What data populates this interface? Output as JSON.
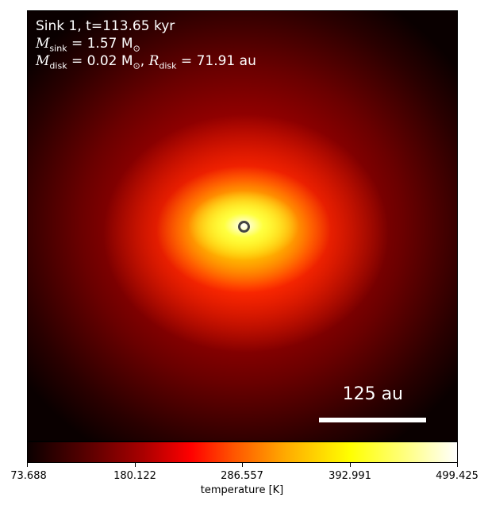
{
  "info": {
    "line1": "Sink 1, t=113.65 kyr",
    "msink_symbol": "M",
    "msink_sub": "sink",
    "msink_value": " = 1.57 M",
    "msink_sun": "⊙",
    "mdisk_symbol": "M",
    "mdisk_sub": "disk",
    "mdisk_value": " = 0.02 M",
    "mdisk_sun": "⊙",
    "rdisk_sep": ", ",
    "rdisk_symbol": "R",
    "rdisk_sub": "disk",
    "rdisk_value": " = 71.91 au"
  },
  "scale_bar": {
    "label": "125 au"
  },
  "colorbar": {
    "label": "temperature [K]",
    "ticks": [
      "73.688",
      "180.122",
      "286.557",
      "392.991",
      "499.425"
    ],
    "colormap": [
      "#000000",
      "#ff0000",
      "#ffff00",
      "#ffffff"
    ]
  }
}
